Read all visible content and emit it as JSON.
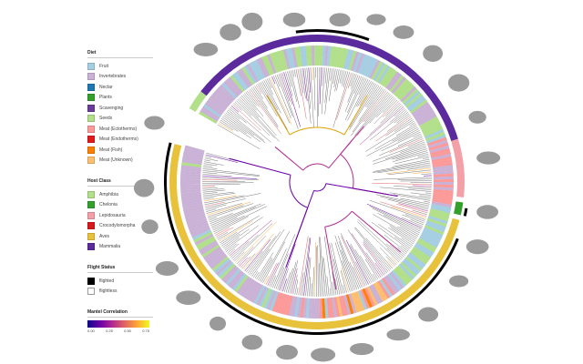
{
  "legend": {
    "diet": {
      "title": "Diet",
      "items": [
        {
          "label": "Fruit",
          "color": "#a6cee3"
        },
        {
          "label": "Invertebrates",
          "color": "#cab2d6"
        },
        {
          "label": "Nectar",
          "color": "#1f78b4"
        },
        {
          "label": "Plants",
          "color": "#33a02c"
        },
        {
          "label": "Scavenging",
          "color": "#6a3d9a"
        },
        {
          "label": "Seeds",
          "color": "#b2df8a"
        },
        {
          "label": "Meat (Ectotherms)",
          "color": "#fb9a99"
        },
        {
          "label": "Meat (Endotherms)",
          "color": "#e31a1c"
        },
        {
          "label": "Meat (Fish)",
          "color": "#ff7f00"
        },
        {
          "label": "Meat (Unknown)",
          "color": "#fdbf6f"
        }
      ]
    },
    "host_class": {
      "title": "Host Class",
      "items": [
        {
          "label": "Amphibia",
          "color": "#b2df8a"
        },
        {
          "label": "Chelonia",
          "color": "#33a02c"
        },
        {
          "label": "Lepidosauria",
          "color": "#f4a0a8"
        },
        {
          "label": "Crocodylomorpha",
          "color": "#d7191c"
        },
        {
          "label": "Aves",
          "color": "#e8c23a"
        },
        {
          "label": "Mammalia",
          "color": "#5b2a9c"
        }
      ]
    },
    "flight_status": {
      "title": "Flight Status",
      "items": [
        {
          "label": "flighted",
          "color": "#000000"
        },
        {
          "label": "flightless",
          "color": "#ffffff"
        }
      ]
    },
    "mantel": {
      "title": "Mantel Correlation",
      "ticks": [
        "0.00",
        "0.25",
        "0.50",
        "0.75"
      ]
    }
  }
}
